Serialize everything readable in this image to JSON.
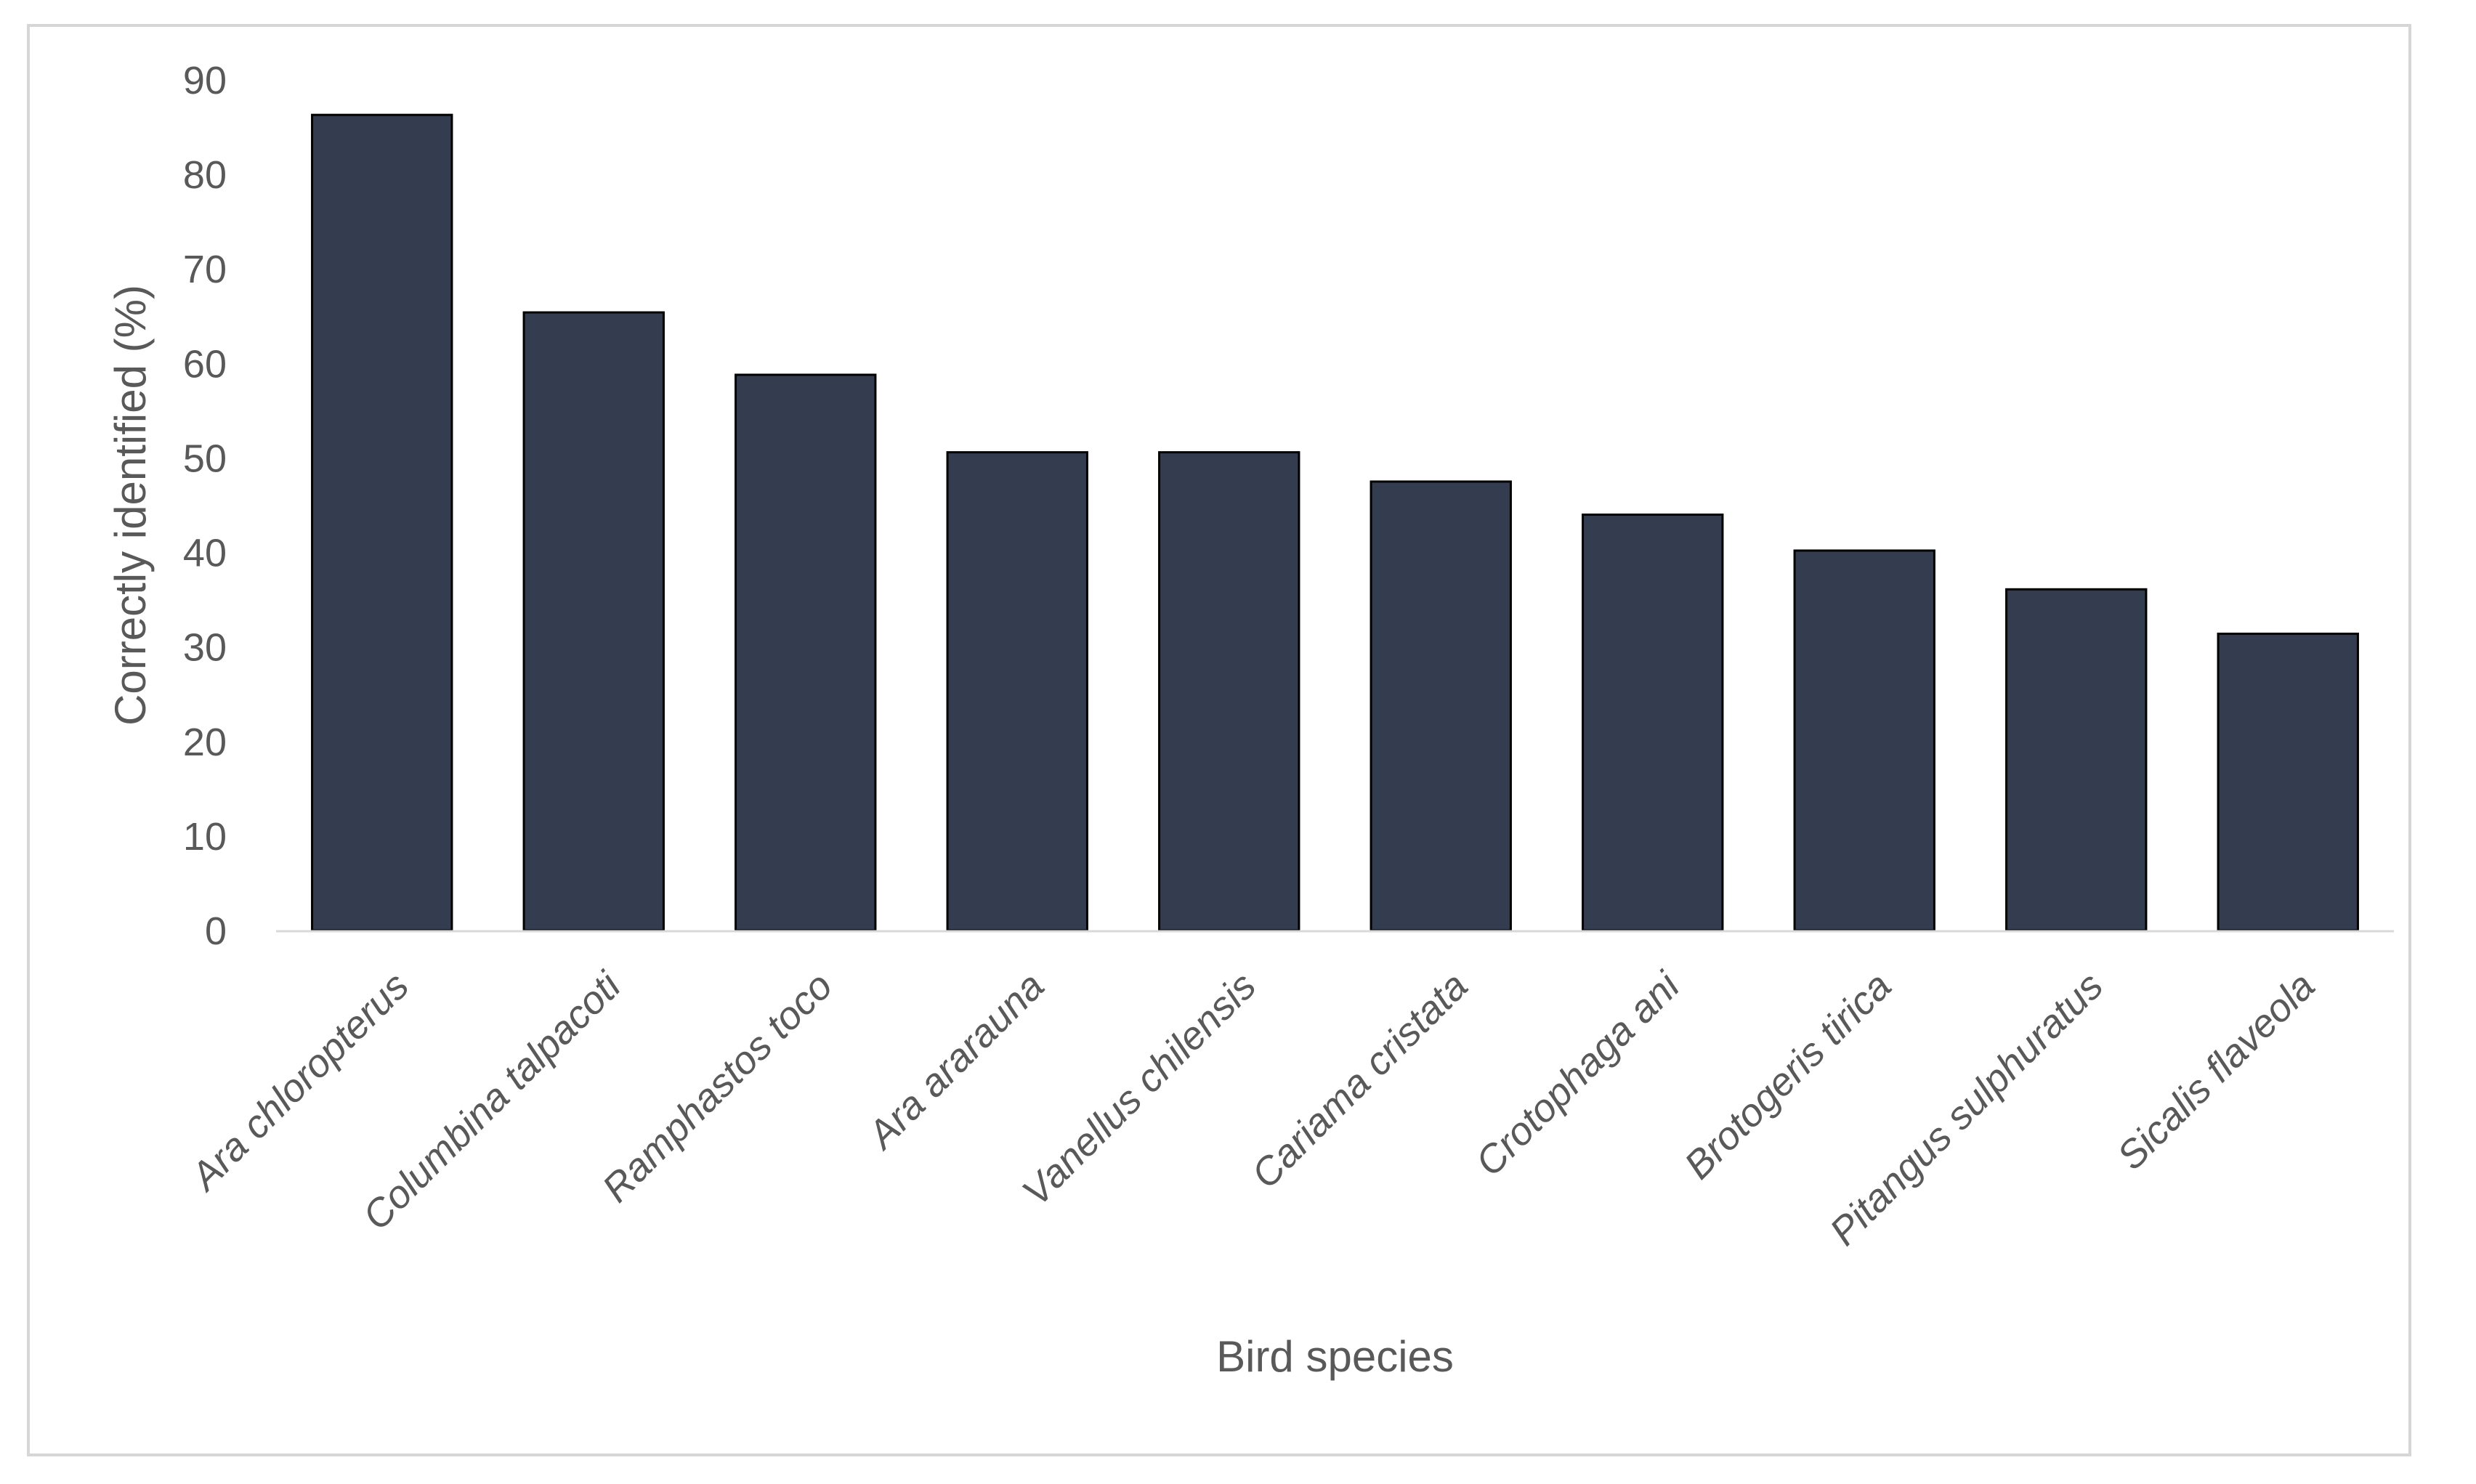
{
  "chart_data": {
    "type": "bar",
    "title": "",
    "xlabel": "Bird species",
    "ylabel": "Correctly identified (%)",
    "ylim": [
      0,
      90
    ],
    "yticks": [
      0,
      10,
      20,
      30,
      40,
      50,
      60,
      70,
      80,
      90
    ],
    "grid": false,
    "legend": "none",
    "bar_color": "#333d4f",
    "categories": [
      "Ara chloropterus",
      "Columbina talpacoti",
      "Ramphastos toco",
      "Ara ararauna",
      "Vanellus chilensis",
      "Cariama cristata",
      "Crotophaga ani",
      "Brotogeris tirica",
      "Pitangus sulphuratus",
      "Sicalis flaveola"
    ],
    "values": [
      86.3,
      65.4,
      58.8,
      50.6,
      50.6,
      47.5,
      44.0,
      40.2,
      36.1,
      31.4
    ]
  }
}
